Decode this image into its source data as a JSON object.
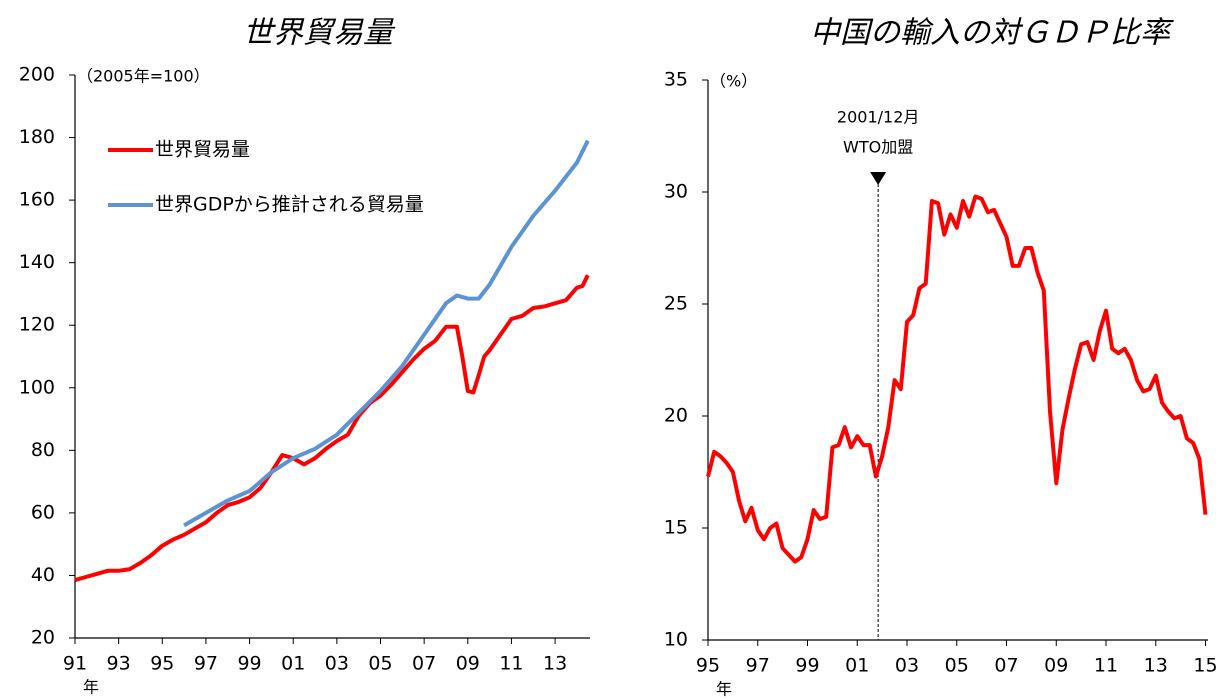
{
  "chart_data": [
    {
      "type": "line",
      "title": "世界貿易量",
      "unit_label": "（2005年=100）",
      "x_unit_label": "年",
      "xlim": [
        1991,
        2014.6
      ],
      "ylim": [
        20,
        200
      ],
      "yticks": [
        20,
        40,
        60,
        80,
        100,
        120,
        140,
        160,
        180,
        200
      ],
      "xticks": [
        {
          "value": 1991,
          "label": "91"
        },
        {
          "value": 1993,
          "label": "93"
        },
        {
          "value": 1995,
          "label": "95"
        },
        {
          "value": 1997,
          "label": "97"
        },
        {
          "value": 1999,
          "label": "99"
        },
        {
          "value": 2001,
          "label": "01"
        },
        {
          "value": 2003,
          "label": "03"
        },
        {
          "value": 2005,
          "label": "05"
        },
        {
          "value": 2007,
          "label": "07"
        },
        {
          "value": 2009,
          "label": "09"
        },
        {
          "value": 2011,
          "label": "11"
        },
        {
          "value": 2013,
          "label": "13"
        }
      ],
      "legend": "upper-left",
      "series": [
        {
          "name": "世界貿易量",
          "color": "#ff0000",
          "x": [
            1991,
            1991.5,
            1992,
            1992.5,
            1993,
            1993.5,
            1994,
            1994.5,
            1995,
            1995.5,
            1996,
            1996.5,
            1997,
            1997.5,
            1998,
            1998.5,
            1999,
            1999.5,
            2000,
            2000.5,
            2001,
            2001.5,
            2002,
            2002.5,
            2003,
            2003.5,
            2004,
            2004.5,
            2005,
            2005.5,
            2006,
            2006.5,
            2007,
            2007.5,
            2008,
            2008.5,
            2008.75,
            2009,
            2009.25,
            2009.5,
            2009.75,
            2010,
            2010.5,
            2011,
            2011.5,
            2012,
            2012.5,
            2013,
            2013.5,
            2014,
            2014.25,
            2014.5
          ],
          "values": [
            38.5,
            39.5,
            40.5,
            41.5,
            41.5,
            42,
            44,
            46.5,
            49.5,
            51.5,
            53,
            55,
            57,
            60,
            62.5,
            63.5,
            65,
            68,
            73,
            78.5,
            77.5,
            75.5,
            77.5,
            80.5,
            83,
            85,
            91,
            95,
            97.5,
            101,
            105,
            109,
            112.5,
            115,
            119.5,
            119.5,
            110,
            99,
            98.5,
            104,
            110,
            112,
            117,
            122,
            123,
            125.5,
            126,
            127,
            128,
            132,
            132.5,
            136
          ]
        },
        {
          "name": "世界GDPから推計される貿易量",
          "color": "#5b93d3",
          "x": [
            1996,
            1997,
            1998,
            1999,
            2000,
            2001,
            2002,
            2003,
            2004,
            2005,
            2006,
            2007,
            2008,
            2008.5,
            2009,
            2009.5,
            2010,
            2011,
            2012,
            2013,
            2014,
            2014.5
          ],
          "values": [
            56,
            60,
            64,
            67,
            73,
            77.5,
            80.5,
            85,
            92,
            99,
            107,
            117,
            127,
            129.5,
            128.5,
            128.5,
            133,
            145,
            155,
            163,
            172,
            179
          ]
        }
      ]
    },
    {
      "type": "line",
      "title": "中国の輸入の対ＧＤＰ比率",
      "unit_label": "（%）",
      "x_unit_label": "年",
      "xlim": [
        1995,
        2015.1
      ],
      "ylim": [
        10,
        35
      ],
      "yticks": [
        10,
        15,
        20,
        25,
        30,
        35
      ],
      "xticks": [
        {
          "value": 1995,
          "label": "95"
        },
        {
          "value": 1997,
          "label": "97"
        },
        {
          "value": 1999,
          "label": "99"
        },
        {
          "value": 2001,
          "label": "01"
        },
        {
          "value": 2003,
          "label": "03"
        },
        {
          "value": 2005,
          "label": "05"
        },
        {
          "value": 2007,
          "label": "07"
        },
        {
          "value": 2009,
          "label": "09"
        },
        {
          "value": 2011,
          "label": "11"
        },
        {
          "value": 2013,
          "label": "13"
        },
        {
          "value": 2015,
          "label": "15"
        }
      ],
      "annotation": {
        "x": 2001.84,
        "lines": [
          "2001/12月",
          "WTO加盟"
        ]
      },
      "series": [
        {
          "color": "#ff0000",
          "x": [
            1995,
            1995.25,
            1995.5,
            1995.75,
            1996,
            1996.25,
            1996.5,
            1996.75,
            1997,
            1997.25,
            1997.5,
            1997.75,
            1998,
            1998.25,
            1998.5,
            1998.75,
            1999,
            1999.25,
            1999.5,
            1999.75,
            2000,
            2000.25,
            2000.5,
            2000.75,
            2001,
            2001.25,
            2001.5,
            2001.75,
            2002,
            2002.25,
            2002.5,
            2002.75,
            2003,
            2003.25,
            2003.5,
            2003.75,
            2004,
            2004.25,
            2004.5,
            2004.75,
            2005,
            2005.25,
            2005.5,
            2005.75,
            2006,
            2006.25,
            2006.5,
            2006.75,
            2007,
            2007.25,
            2007.5,
            2007.75,
            2008,
            2008.25,
            2008.5,
            2008.75,
            2009,
            2009.25,
            2009.5,
            2009.75,
            2010,
            2010.25,
            2010.5,
            2010.75,
            2011,
            2011.25,
            2011.5,
            2011.75,
            2012,
            2012.25,
            2012.5,
            2012.75,
            2013,
            2013.25,
            2013.5,
            2013.75,
            2014,
            2014.25,
            2014.5,
            2014.75,
            2015
          ],
          "values": [
            17.3,
            18.4,
            18.2,
            17.9,
            17.5,
            16.2,
            15.3,
            15.9,
            14.9,
            14.5,
            15.0,
            15.2,
            14.1,
            13.8,
            13.5,
            13.7,
            14.5,
            15.8,
            15.4,
            15.5,
            18.6,
            18.7,
            19.5,
            18.6,
            19.1,
            18.7,
            18.7,
            17.3,
            18.2,
            19.5,
            21.6,
            21.2,
            24.2,
            24.5,
            25.7,
            25.9,
            29.6,
            29.5,
            28.1,
            29.0,
            28.4,
            29.6,
            28.9,
            29.8,
            29.7,
            29.1,
            29.2,
            28.6,
            28.0,
            26.7,
            26.7,
            27.5,
            27.5,
            26.4,
            25.6,
            20.2,
            17.0,
            19.4,
            20.8,
            22.1,
            23.2,
            23.3,
            22.5,
            23.8,
            24.7,
            23.0,
            22.8,
            23.0,
            22.5,
            21.6,
            21.1,
            21.2,
            21.8,
            20.6,
            20.2,
            19.9,
            20.0,
            19.0,
            18.8,
            18.1,
            15.6
          ]
        }
      ]
    }
  ]
}
